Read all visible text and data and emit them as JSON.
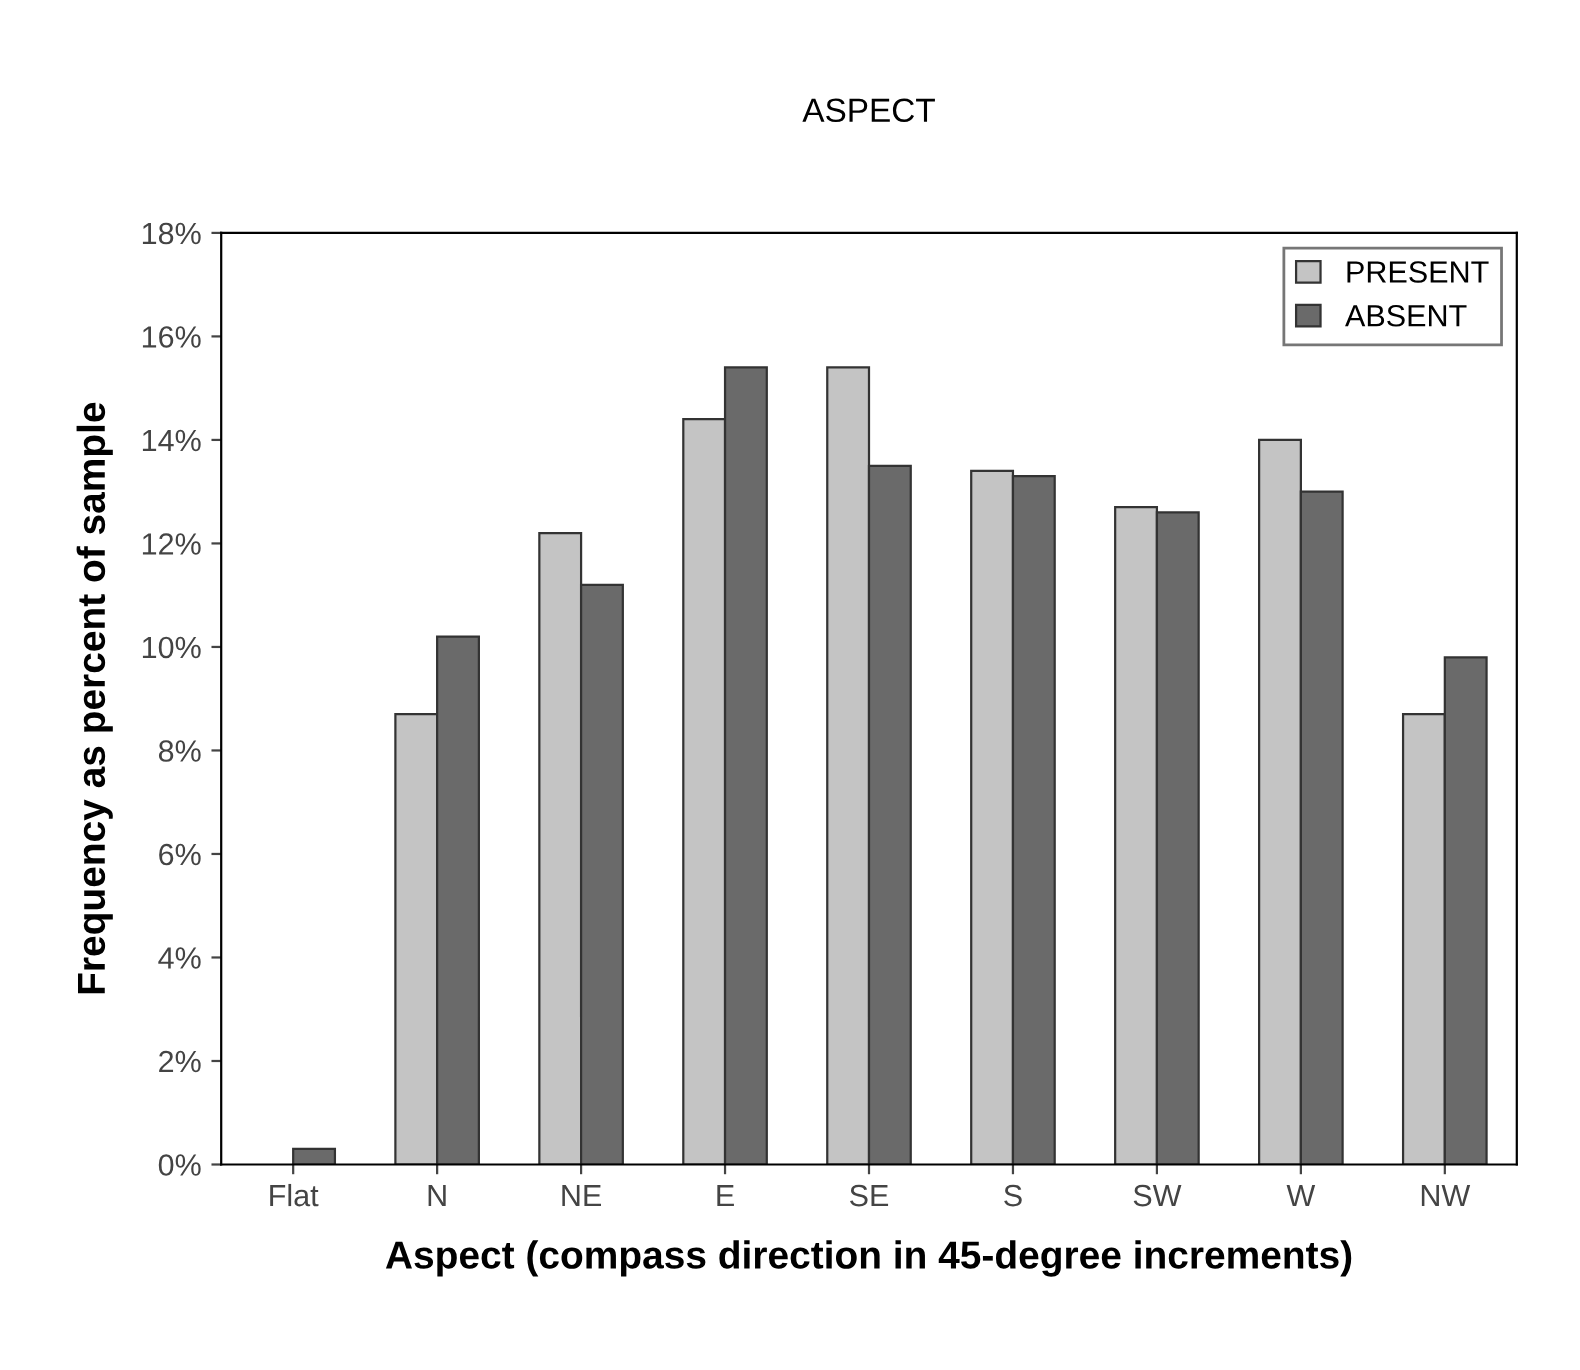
{
  "chart_data": {
    "type": "bar",
    "title": "ASPECT",
    "xlabel": "Aspect (compass direction in 45-degree increments)",
    "ylabel": "Frequency as percent of sample",
    "categories": [
      "Flat",
      "N",
      "NE",
      "E",
      "SE",
      "S",
      "SW",
      "W",
      "NW"
    ],
    "series": [
      {
        "name": "PRESENT",
        "color": "#c4c4c4",
        "values": [
          null,
          8.7,
          12.2,
          14.4,
          15.4,
          13.4,
          12.7,
          14.0,
          8.7
        ]
      },
      {
        "name": "ABSENT",
        "color": "#6a6a6a",
        "values": [
          0.3,
          10.2,
          11.2,
          15.4,
          13.5,
          13.3,
          12.6,
          13.0,
          9.8
        ]
      }
    ],
    "ylim": [
      0,
      18
    ],
    "yticks": [
      {
        "value": 0,
        "label": "0%"
      },
      {
        "value": 2,
        "label": "2%"
      },
      {
        "value": 4,
        "label": "4%"
      },
      {
        "value": 6,
        "label": "6%"
      },
      {
        "value": 8,
        "label": "8%"
      },
      {
        "value": 10,
        "label": "10%"
      },
      {
        "value": 12,
        "label": "12%"
      },
      {
        "value": 14,
        "label": "14%"
      },
      {
        "value": 16,
        "label": "16%"
      },
      {
        "value": 18,
        "label": "18%"
      }
    ],
    "grid": false,
    "legend": "top right"
  }
}
